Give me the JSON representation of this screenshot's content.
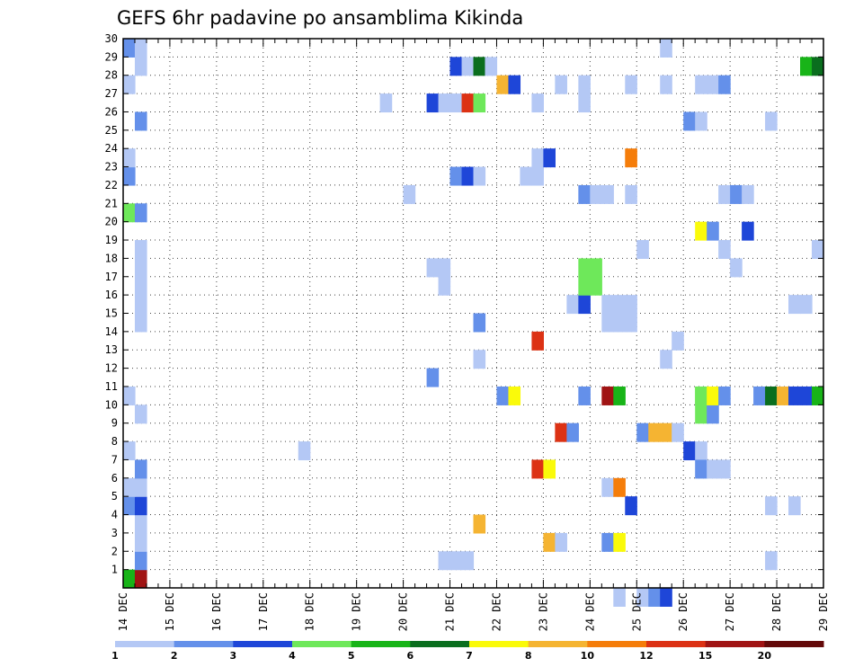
{
  "chart_data": {
    "type": "heatmap",
    "title": "GEFS 6hr padavine po ansamblima Kikinda",
    "x_tick_labels": [
      "14 DEC",
      "15 DEC",
      "16 DEC",
      "17 DEC",
      "18 DEC",
      "19 DEC",
      "20 DEC",
      "21 DEC",
      "22 DEC",
      "23 DEC",
      "24 DEC",
      "25 DEC",
      "26 DEC",
      "27 DEC",
      "28 DEC",
      "29 DEC"
    ],
    "y_tick_labels": [
      "1",
      "2",
      "3",
      "4",
      "5",
      "6",
      "7",
      "8",
      "9",
      "10",
      "11",
      "12",
      "13",
      "14",
      "15",
      "16",
      "17",
      "18",
      "19",
      "20",
      "21",
      "22",
      "23",
      "24",
      "25",
      "26",
      "27",
      "28",
      "29",
      "30"
    ],
    "xlim_days": [
      0,
      15
    ],
    "ylim": [
      0,
      30
    ],
    "time_step_hours": 6,
    "grid": "dotted",
    "legend": {
      "placement": "bottom",
      "labels": [
        "1",
        "2",
        "3",
        "4",
        "5",
        "6",
        "7",
        "8",
        "10",
        "12",
        "15",
        "20"
      ],
      "colors": [
        "#b4c8f5",
        "#6490ea",
        "#1e46d8",
        "#6ee85a",
        "#18b418",
        "#0a6e1e",
        "#fafa0a",
        "#f5b432",
        "#f57d0a",
        "#dc3214",
        "#a01414",
        "#640a0a"
      ]
    },
    "cells": [
      {
        "day": 0.0,
        "member": 0,
        "level": 5
      },
      {
        "day": 0.25,
        "member": 0,
        "level": 11
      },
      {
        "day": 0.25,
        "member": 1,
        "level": 2
      },
      {
        "day": 0.25,
        "member": 2,
        "level": 1
      },
      {
        "day": 0.25,
        "member": 3,
        "level": 1
      },
      {
        "day": 0.0,
        "member": 4,
        "level": 2
      },
      {
        "day": 0.25,
        "member": 4,
        "level": 3
      },
      {
        "day": 0.0,
        "member": 5,
        "level": 1
      },
      {
        "day": 0.25,
        "member": 5,
        "level": 1
      },
      {
        "day": 0.25,
        "member": 6,
        "level": 2
      },
      {
        "day": 0.0,
        "member": 7,
        "level": 1
      },
      {
        "day": 0.25,
        "member": 9,
        "level": 1
      },
      {
        "day": 0.0,
        "member": 10,
        "level": 1
      },
      {
        "day": 0.0,
        "member": 20,
        "level": 4
      },
      {
        "day": 0.25,
        "member": 20,
        "level": 2
      },
      {
        "day": 0.0,
        "member": 22,
        "level": 2
      },
      {
        "day": 0.0,
        "member": 23,
        "level": 1
      },
      {
        "day": 0.25,
        "member": 25,
        "level": 2
      },
      {
        "day": 0.0,
        "member": 27,
        "level": 1
      },
      {
        "day": 0.25,
        "member": 28,
        "level": 1
      },
      {
        "day": 0.0,
        "member": 29,
        "level": 2
      },
      {
        "day": 0.25,
        "member": 29,
        "level": 1
      },
      {
        "day": 0.25,
        "member": 14,
        "level": 1
      },
      {
        "day": 0.25,
        "member": 15,
        "level": 1
      },
      {
        "day": 0.25,
        "member": 16,
        "level": 1
      },
      {
        "day": 0.25,
        "member": 17,
        "level": 1
      },
      {
        "day": 0.25,
        "member": 18,
        "level": 1
      },
      {
        "day": 3.75,
        "member": 7,
        "level": 1
      },
      {
        "day": 5.5,
        "member": 26,
        "level": 1
      },
      {
        "day": 6.0,
        "member": 21,
        "level": 1
      },
      {
        "day": 6.5,
        "member": 11,
        "level": 2
      },
      {
        "day": 6.5,
        "member": 17,
        "level": 1
      },
      {
        "day": 6.75,
        "member": 17,
        "level": 1
      },
      {
        "day": 6.75,
        "member": 16,
        "level": 1
      },
      {
        "day": 6.75,
        "member": 1,
        "level": 1
      },
      {
        "day": 7.0,
        "member": 1,
        "level": 1
      },
      {
        "day": 7.25,
        "member": 1,
        "level": 1
      },
      {
        "day": 6.5,
        "member": 26,
        "level": 3
      },
      {
        "day": 6.75,
        "member": 26,
        "level": 1
      },
      {
        "day": 7.0,
        "member": 26,
        "level": 1
      },
      {
        "day": 7.25,
        "member": 26,
        "level": 10
      },
      {
        "day": 7.5,
        "member": 26,
        "level": 4
      },
      {
        "day": 7.0,
        "member": 28,
        "level": 3
      },
      {
        "day": 7.25,
        "member": 28,
        "level": 1
      },
      {
        "day": 7.5,
        "member": 28,
        "level": 6
      },
      {
        "day": 7.75,
        "member": 28,
        "level": 1
      },
      {
        "day": 7.0,
        "member": 22,
        "level": 2
      },
      {
        "day": 7.25,
        "member": 22,
        "level": 3
      },
      {
        "day": 7.5,
        "member": 22,
        "level": 1
      },
      {
        "day": 7.5,
        "member": 3,
        "level": 8
      },
      {
        "day": 7.5,
        "member": 12,
        "level": 1
      },
      {
        "day": 7.5,
        "member": 14,
        "level": 2
      },
      {
        "day": 8.0,
        "member": 27,
        "level": 8
      },
      {
        "day": 8.25,
        "member": 27,
        "level": 3
      },
      {
        "day": 8.0,
        "member": 10,
        "level": 2
      },
      {
        "day": 8.25,
        "member": 10,
        "level": 7
      },
      {
        "day": 8.5,
        "member": 22,
        "level": 1
      },
      {
        "day": 8.75,
        "member": 22,
        "level": 1
      },
      {
        "day": 8.75,
        "member": 23,
        "level": 1
      },
      {
        "day": 9.0,
        "member": 23,
        "level": 3
      },
      {
        "day": 8.75,
        "member": 26,
        "level": 1
      },
      {
        "day": 8.75,
        "member": 13,
        "level": 10
      },
      {
        "day": 8.75,
        "member": 6,
        "level": 10
      },
      {
        "day": 9.0,
        "member": 6,
        "level": 7
      },
      {
        "day": 9.0,
        "member": 2,
        "level": 8
      },
      {
        "day": 9.25,
        "member": 2,
        "level": 1
      },
      {
        "day": 9.25,
        "member": 8,
        "level": 10
      },
      {
        "day": 9.5,
        "member": 8,
        "level": 2
      },
      {
        "day": 9.25,
        "member": 27,
        "level": 1
      },
      {
        "day": 9.5,
        "member": 15,
        "level": 1
      },
      {
        "day": 9.75,
        "member": 15,
        "level": 3
      },
      {
        "day": 9.75,
        "member": 10,
        "level": 2
      },
      {
        "day": 9.75,
        "member": 21,
        "level": 2
      },
      {
        "day": 10.0,
        "member": 21,
        "level": 1
      },
      {
        "day": 10.25,
        "member": 21,
        "level": 1
      },
      {
        "day": 9.75,
        "member": 26,
        "level": 1
      },
      {
        "day": 9.75,
        "member": 27,
        "level": 1
      },
      {
        "day": 9.75,
        "member": 16,
        "level": 4
      },
      {
        "day": 9.75,
        "member": 17,
        "level": 4
      },
      {
        "day": 10.0,
        "member": 16,
        "level": 4
      },
      {
        "day": 10.0,
        "member": 17,
        "level": 4
      },
      {
        "day": 10.25,
        "member": 10,
        "level": 11
      },
      {
        "day": 10.5,
        "member": 10,
        "level": 5
      },
      {
        "day": 10.25,
        "member": 5,
        "level": 1
      },
      {
        "day": 10.5,
        "member": 5,
        "level": 9
      },
      {
        "day": 10.25,
        "member": 2,
        "level": 2
      },
      {
        "day": 10.5,
        "member": 2,
        "level": 7
      },
      {
        "day": 10.25,
        "member": 14,
        "level": 1
      },
      {
        "day": 10.5,
        "member": 14,
        "level": 1
      },
      {
        "day": 10.75,
        "member": 14,
        "level": 1
      },
      {
        "day": 10.25,
        "member": 15,
        "level": 1
      },
      {
        "day": 10.5,
        "member": 15,
        "level": 1
      },
      {
        "day": 10.75,
        "member": 15,
        "level": 1
      },
      {
        "day": 10.75,
        "member": 23,
        "level": 9
      },
      {
        "day": 10.75,
        "member": 27,
        "level": 1
      },
      {
        "day": 10.75,
        "member": 21,
        "level": 1
      },
      {
        "day": 10.75,
        "member": 4,
        "level": 3
      },
      {
        "day": 10.5,
        "member": -1,
        "level": 1
      },
      {
        "day": 11.0,
        "member": 18,
        "level": 1
      },
      {
        "day": 11.0,
        "member": 8,
        "level": 2
      },
      {
        "day": 11.25,
        "member": 8,
        "level": 8
      },
      {
        "day": 11.5,
        "member": 8,
        "level": 8
      },
      {
        "day": 11.75,
        "member": 8,
        "level": 1
      },
      {
        "day": 11.0,
        "member": -1,
        "level": 1
      },
      {
        "day": 11.25,
        "member": -1,
        "level": 2
      },
      {
        "day": 11.5,
        "member": -1,
        "level": 3
      },
      {
        "day": 11.5,
        "member": 27,
        "level": 1
      },
      {
        "day": 11.5,
        "member": 12,
        "level": 1
      },
      {
        "day": 11.5,
        "member": 29,
        "level": 1
      },
      {
        "day": 11.75,
        "member": 13,
        "level": 1
      },
      {
        "day": 12.0,
        "member": 7,
        "level": 3
      },
      {
        "day": 12.25,
        "member": 7,
        "level": 1
      },
      {
        "day": 12.25,
        "member": 6,
        "level": 2
      },
      {
        "day": 12.5,
        "member": 6,
        "level": 1
      },
      {
        "day": 12.75,
        "member": 6,
        "level": 1
      },
      {
        "day": 12.0,
        "member": 25,
        "level": 2
      },
      {
        "day": 12.25,
        "member": 25,
        "level": 1
      },
      {
        "day": 12.25,
        "member": 9,
        "level": 4
      },
      {
        "day": 12.25,
        "member": 10,
        "level": 4
      },
      {
        "day": 12.5,
        "member": 9,
        "level": 2
      },
      {
        "day": 12.25,
        "member": 19,
        "level": 7
      },
      {
        "day": 12.5,
        "member": 19,
        "level": 2
      },
      {
        "day": 12.25,
        "member": 27,
        "level": 1
      },
      {
        "day": 12.5,
        "member": 27,
        "level": 1
      },
      {
        "day": 12.75,
        "member": 27,
        "level": 2
      },
      {
        "day": 12.75,
        "member": 18,
        "level": 1
      },
      {
        "day": 12.75,
        "member": 21,
        "level": 1
      },
      {
        "day": 13.0,
        "member": 21,
        "level": 2
      },
      {
        "day": 13.25,
        "member": 21,
        "level": 1
      },
      {
        "day": 13.25,
        "member": 19,
        "level": 3
      },
      {
        "day": 13.0,
        "member": 17,
        "level": 1
      },
      {
        "day": 12.25,
        "member": 10,
        "level": 4
      },
      {
        "day": 12.5,
        "member": 10,
        "level": 7
      },
      {
        "day": 12.75,
        "member": 10,
        "level": 2
      },
      {
        "day": 13.5,
        "member": 10,
        "level": 2
      },
      {
        "day": 13.75,
        "member": 10,
        "level": 6
      },
      {
        "day": 14.0,
        "member": 10,
        "level": 8
      },
      {
        "day": 14.25,
        "member": 10,
        "level": 3
      },
      {
        "day": 14.5,
        "member": 10,
        "level": 3
      },
      {
        "day": 14.75,
        "member": 10,
        "level": 5
      },
      {
        "day": 13.75,
        "member": 1,
        "level": 1
      },
      {
        "day": 13.75,
        "member": 4,
        "level": 1
      },
      {
        "day": 14.25,
        "member": 4,
        "level": 1
      },
      {
        "day": 13.75,
        "member": 25,
        "level": 1
      },
      {
        "day": 14.25,
        "member": 15,
        "level": 1
      },
      {
        "day": 14.5,
        "member": 15,
        "level": 1
      },
      {
        "day": 14.5,
        "member": 28,
        "level": 5
      },
      {
        "day": 14.75,
        "member": 28,
        "level": 6
      },
      {
        "day": 14.75,
        "member": 18,
        "level": 1
      }
    ]
  }
}
